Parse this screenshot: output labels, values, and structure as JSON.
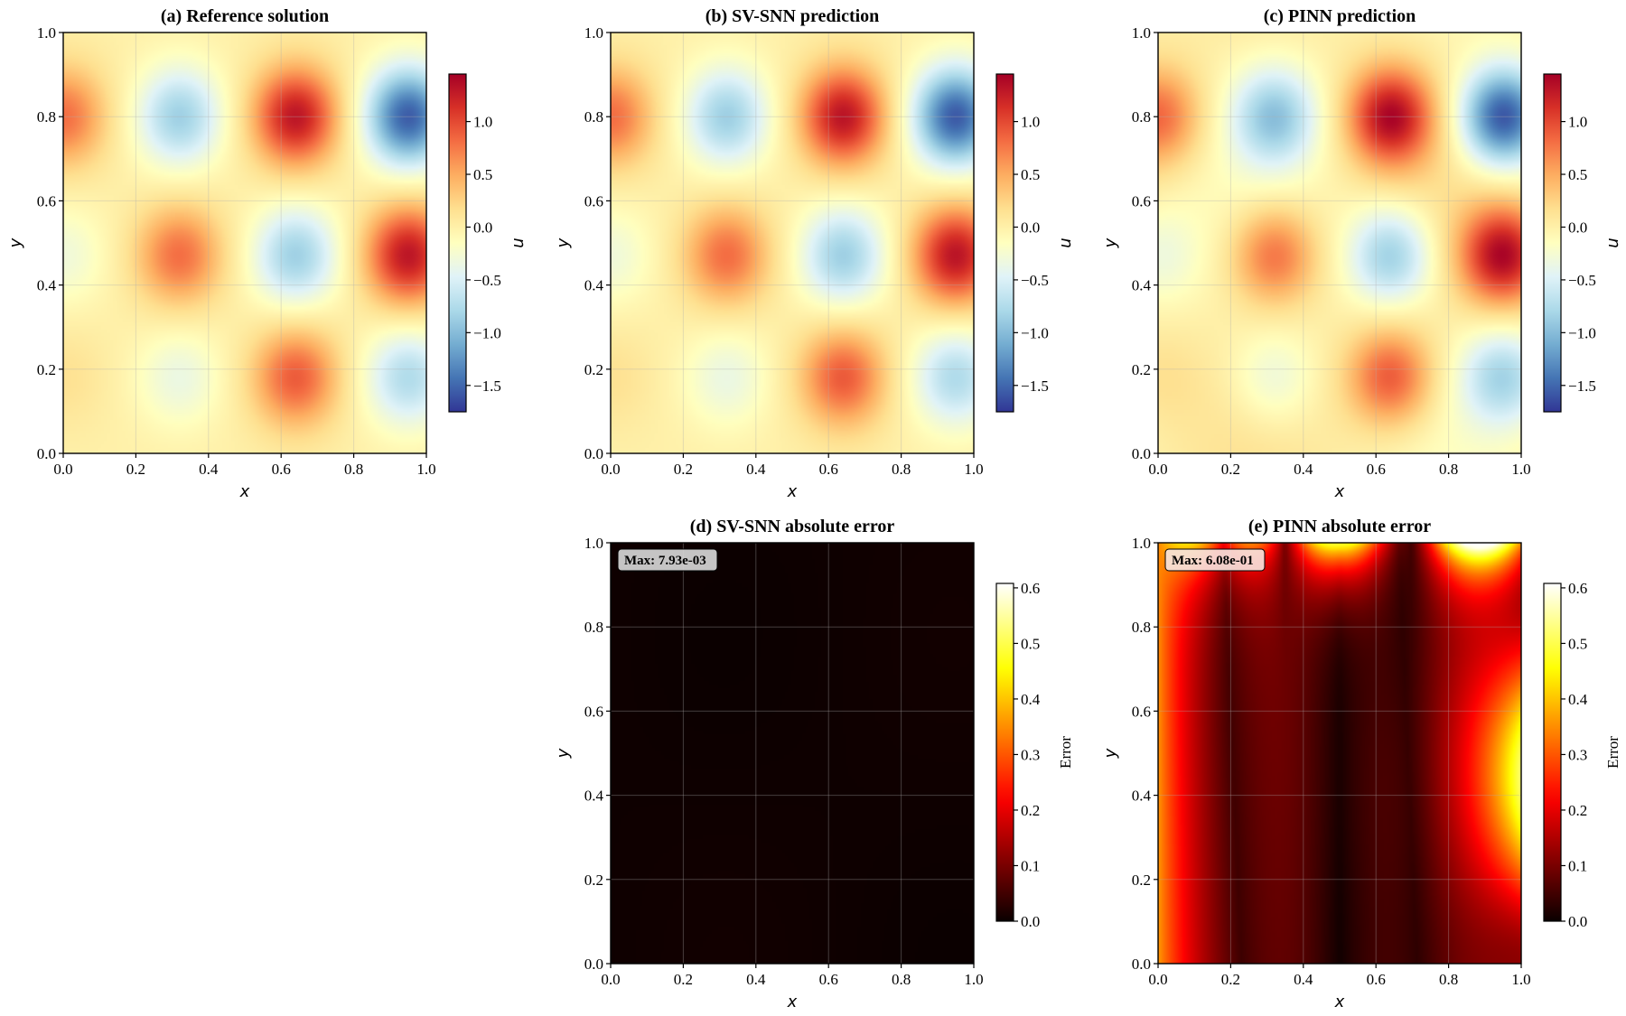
{
  "chart_data": [
    {
      "id": "a",
      "type": "heatmap",
      "field": "reference",
      "title": "(a) Reference solution",
      "xlabel": "x",
      "ylabel": "y",
      "xlim": [
        0,
        1
      ],
      "ylim": [
        0,
        1
      ],
      "xticks": [
        "0.0",
        "0.2",
        "0.4",
        "0.6",
        "0.8",
        "1.0"
      ],
      "yticks": [
        "0.0",
        "0.2",
        "0.4",
        "0.6",
        "0.8",
        "1.0"
      ],
      "colormap": "RdYlBu_r",
      "colorbar": {
        "label": "u",
        "range": [
          -1.75,
          1.45
        ],
        "ticks": [
          "1.0",
          "0.5",
          "0.0",
          "−0.5",
          "−1.0",
          "−1.5"
        ],
        "tick_values": [
          1.0,
          0.5,
          0.0,
          -0.5,
          -1.0,
          -1.5
        ]
      }
    },
    {
      "id": "b",
      "type": "heatmap",
      "field": "svsnn",
      "title": "(b) SV-SNN prediction",
      "xlabel": "x",
      "ylabel": "y",
      "xlim": [
        0,
        1
      ],
      "ylim": [
        0,
        1
      ],
      "xticks": [
        "0.0",
        "0.2",
        "0.4",
        "0.6",
        "0.8",
        "1.0"
      ],
      "yticks": [
        "0.0",
        "0.2",
        "0.4",
        "0.6",
        "0.8",
        "1.0"
      ],
      "colormap": "RdYlBu_r",
      "colorbar": {
        "label": "u",
        "range": [
          -1.75,
          1.45
        ],
        "ticks": [
          "1.0",
          "0.5",
          "0.0",
          "−0.5",
          "−1.0",
          "−1.5"
        ],
        "tick_values": [
          1.0,
          0.5,
          0.0,
          -0.5,
          -1.0,
          -1.5
        ]
      }
    },
    {
      "id": "c",
      "type": "heatmap",
      "field": "pinn",
      "title": "(c) PINN prediction",
      "xlabel": "x",
      "ylabel": "y",
      "xlim": [
        0,
        1
      ],
      "ylim": [
        0,
        1
      ],
      "xticks": [
        "0.0",
        "0.2",
        "0.4",
        "0.6",
        "0.8",
        "1.0"
      ],
      "yticks": [
        "0.0",
        "0.2",
        "0.4",
        "0.6",
        "0.8",
        "1.0"
      ],
      "colormap": "RdYlBu_r",
      "colorbar": {
        "label": "u",
        "range": [
          -1.75,
          1.45
        ],
        "ticks": [
          "1.0",
          "0.5",
          "0.0",
          "−0.5",
          "−1.0",
          "−1.5"
        ],
        "tick_values": [
          1.0,
          0.5,
          0.0,
          -0.5,
          -1.0,
          -1.5
        ]
      }
    },
    {
      "id": "d",
      "type": "heatmap",
      "field": "svsnn_error",
      "title": "(d) SV-SNN absolute error",
      "xlabel": "x",
      "ylabel": "y",
      "xlim": [
        0,
        1
      ],
      "ylim": [
        0,
        1
      ],
      "xticks": [
        "0.0",
        "0.2",
        "0.4",
        "0.6",
        "0.8",
        "1.0"
      ],
      "yticks": [
        "0.0",
        "0.2",
        "0.4",
        "0.6",
        "0.8",
        "1.0"
      ],
      "colormap": "hot",
      "annotation": "Max: 7.93e-03",
      "max_error": 0.00793,
      "colorbar": {
        "label": "Error",
        "range": [
          0,
          0.608
        ],
        "ticks": [
          "0.6",
          "0.5",
          "0.4",
          "0.3",
          "0.2",
          "0.1",
          "0.0"
        ],
        "tick_values": [
          0.6,
          0.5,
          0.4,
          0.3,
          0.2,
          0.1,
          0.0
        ]
      }
    },
    {
      "id": "e",
      "type": "heatmap",
      "field": "pinn_error",
      "title": "(e) PINN absolute error",
      "xlabel": "x",
      "ylabel": "y",
      "xlim": [
        0,
        1
      ],
      "ylim": [
        0,
        1
      ],
      "xticks": [
        "0.0",
        "0.2",
        "0.4",
        "0.6",
        "0.8",
        "1.0"
      ],
      "yticks": [
        "0.0",
        "0.2",
        "0.4",
        "0.6",
        "0.8",
        "1.0"
      ],
      "colormap": "hot",
      "annotation": "Max: 6.08e-01",
      "max_error": 0.608,
      "colorbar": {
        "label": "Error",
        "range": [
          0,
          0.608
        ],
        "ticks": [
          "0.6",
          "0.5",
          "0.4",
          "0.3",
          "0.2",
          "0.1",
          "0.0"
        ],
        "tick_values": [
          0.6,
          0.5,
          0.4,
          0.3,
          0.2,
          0.1,
          0.0
        ]
      }
    }
  ]
}
